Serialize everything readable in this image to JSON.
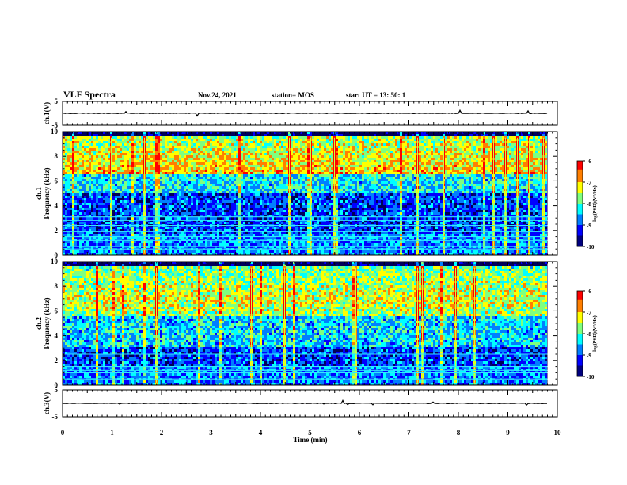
{
  "header": {
    "title": "VLF Spectra",
    "date": "Nov.24, 2021",
    "station": "station= MOS",
    "start": "start  UT =   13: 50: 1"
  },
  "chart_data": [
    {
      "type": "line",
      "panel": "ch1-waveform",
      "ylabel": "ch.1(V)",
      "ylim": [
        -5,
        5
      ],
      "yticks": [
        "5",
        "-5"
      ],
      "xlim": [
        0,
        10
      ],
      "baseline": 0
    },
    {
      "type": "heatmap",
      "panel": "ch1-spectrogram",
      "ylabel": "ch.1 Frequency (kHz)",
      "ylim": [
        0,
        10
      ],
      "yticks": [
        "10",
        "8",
        "6",
        "4",
        "2",
        "0"
      ],
      "xlim": [
        0,
        10
      ],
      "data_end_min": 9.8,
      "colorbar": {
        "label": "log(PSD)(V²/Hz)",
        "range": [
          -10,
          -6
        ],
        "ticks": [
          "-6",
          "-7",
          "-8",
          "-9",
          "-10"
        ]
      },
      "persistent_lines_khz": [
        0.5,
        0.7,
        1.2,
        1.5,
        1.9,
        2.4,
        2.8,
        3.1
      ]
    },
    {
      "type": "heatmap",
      "panel": "ch2-spectrogram",
      "ylabel": "ch.2 Frequency (kHz)",
      "ylim": [
        0,
        10
      ],
      "yticks": [
        "10",
        "8",
        "6",
        "4",
        "2",
        "0"
      ],
      "xlim": [
        0,
        10
      ],
      "data_end_min": 9.8,
      "colorbar": {
        "label": "log(PSD)(V²/Hz)",
        "range": [
          -10,
          -6
        ],
        "ticks": [
          "-6",
          "-7",
          "-8",
          "-9",
          "-10"
        ]
      },
      "persistent_lines_khz": [
        0.5,
        1.0,
        1.2,
        1.5,
        2.5
      ]
    },
    {
      "type": "line",
      "panel": "ch3-waveform",
      "ylabel": "ch.3(V)",
      "ylim": [
        -5,
        5
      ],
      "yticks": [
        "5",
        "-5"
      ],
      "xlim": [
        0,
        10
      ],
      "baseline": 0
    }
  ],
  "xaxis": {
    "label": "Time  (min)",
    "ticks": [
      "0",
      "1",
      "2",
      "3",
      "4",
      "5",
      "6",
      "7",
      "8",
      "9",
      "10"
    ]
  },
  "colormap": [
    "#00007f",
    "#0000ff",
    "#007fff",
    "#00ffff",
    "#7fff7f",
    "#ffff00",
    "#ff7f00",
    "#ff0000",
    "#ffffff"
  ]
}
